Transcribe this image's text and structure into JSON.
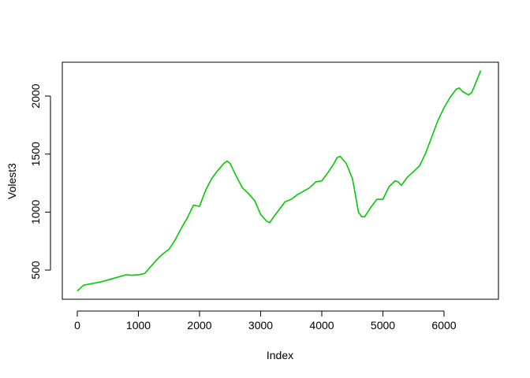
{
  "chart_data": {
    "type": "line",
    "xlabel": "Index",
    "ylabel": "Volest3",
    "xlim": [
      0,
      6600
    ],
    "ylim": [
      320,
      2220
    ],
    "x_ticks": [
      0,
      1000,
      2000,
      3000,
      4000,
      5000,
      6000
    ],
    "y_ticks": [
      500,
      1000,
      1500,
      2000
    ],
    "line_color": "#00cc00",
    "grid": false,
    "series": [
      {
        "x": [
          0,
          100,
          200,
          400,
          600,
          800,
          900,
          1000,
          1100,
          1200,
          1300,
          1400,
          1500,
          1600,
          1700,
          1800,
          1900,
          2000,
          2100,
          2200,
          2300,
          2400,
          2450,
          2500,
          2600,
          2700,
          2800,
          2900,
          3000,
          3100,
          3150,
          3200,
          3300,
          3400,
          3500,
          3600,
          3700,
          3800,
          3900,
          4000,
          4100,
          4200,
          4250,
          4300,
          4400,
          4500,
          4550,
          4600,
          4650,
          4700,
          4800,
          4900,
          5000,
          5100,
          5200,
          5250,
          5300,
          5400,
          5500,
          5600,
          5700,
          5800,
          5900,
          6000,
          6100,
          6200,
          6250,
          6300,
          6400,
          6450,
          6500,
          6600
        ],
        "y": [
          320,
          370,
          380,
          400,
          430,
          460,
          455,
          460,
          470,
          530,
          590,
          640,
          680,
          760,
          860,
          950,
          1060,
          1050,
          1190,
          1290,
          1360,
          1420,
          1440,
          1420,
          1310,
          1210,
          1160,
          1100,
          980,
          920,
          910,
          950,
          1020,
          1090,
          1110,
          1150,
          1180,
          1210,
          1260,
          1270,
          1340,
          1420,
          1470,
          1480,
          1420,
          1290,
          1150,
          1000,
          960,
          960,
          1040,
          1110,
          1110,
          1220,
          1270,
          1260,
          1230,
          1300,
          1350,
          1400,
          1510,
          1650,
          1790,
          1900,
          1990,
          2060,
          2070,
          2040,
          2010,
          2030,
          2090,
          2220
        ]
      }
    ]
  }
}
